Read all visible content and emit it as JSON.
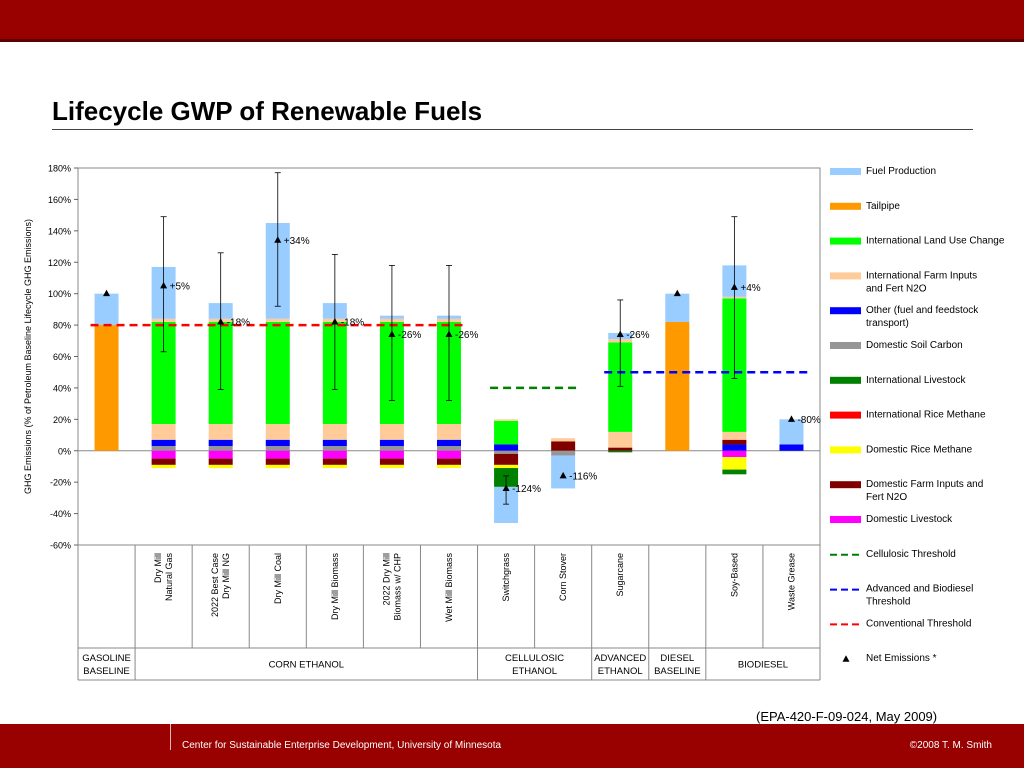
{
  "slide": {
    "title": "Lifecycle GWP of Renewable Fuels",
    "citation": "(EPA-420-F-09-024, May 2009)",
    "footer_left": "Center for Sustainable Enterprise Development, University of Minnesota",
    "footer_right": "©2008 T. M. Smith"
  },
  "chart_data": {
    "type": "bar",
    "stacked": true,
    "ylabel": "GHG Emissions (% of Petroleum Baseline Lifecycle GHG Emissions)",
    "ylim": [
      -60,
      180
    ],
    "yticks": [
      -60,
      -40,
      -20,
      0,
      20,
      40,
      60,
      80,
      100,
      120,
      140,
      160,
      180
    ],
    "ytick_labels": [
      "-60%",
      "-40%",
      "-20%",
      "0%",
      "20%",
      "40%",
      "60%",
      "80%",
      "100%",
      "120%",
      "140%",
      "160%",
      "180%"
    ],
    "grid": false,
    "legend_position": "right",
    "categories": [
      "",
      "Dry Mill Natural Gas",
      "2022 Best Case Dry Mill NG",
      "Dry Mill Coal",
      "Dry Mill Biomass",
      "2022 Dry Mill Biomass w/ CHP",
      "Wet Mill Biomass",
      "Switchgrass",
      "Corn Stover",
      "Sugarcane",
      "",
      "Soy-Based",
      "Waste Grease"
    ],
    "groups": [
      {
        "label": [
          "GASOLINE",
          "BASELINE"
        ],
        "span": [
          0,
          0
        ]
      },
      {
        "label": [
          "CORN ETHANOL"
        ],
        "span": [
          1,
          6
        ]
      },
      {
        "label": [
          "CELLULOSIC",
          "ETHANOL"
        ],
        "span": [
          7,
          8
        ]
      },
      {
        "label": [
          "ADVANCED",
          "ETHANOL"
        ],
        "span": [
          9,
          9
        ]
      },
      {
        "label": [
          "DIESEL",
          "BASELINE"
        ],
        "span": [
          10,
          10
        ]
      },
      {
        "label": [
          "BIODIESEL"
        ],
        "span": [
          11,
          12
        ]
      }
    ],
    "components": [
      {
        "key": "fuel_production",
        "name": "Fuel Production",
        "color": "#99CCFF"
      },
      {
        "key": "tailpipe",
        "name": "Tailpipe",
        "color": "#FF9900"
      },
      {
        "key": "intl_luc",
        "name": "International Land Use Change",
        "color": "#00FF00"
      },
      {
        "key": "intl_farm",
        "name": "International Farm Inputs and Fert N2O",
        "color": "#FFCC99"
      },
      {
        "key": "other_transport",
        "name": "Other (fuel and feedstock transport)",
        "color": "#0000FF"
      },
      {
        "key": "dom_soil",
        "name": "Domestic Soil Carbon",
        "color": "#969696"
      },
      {
        "key": "intl_livestock",
        "name": "International Livestock",
        "color": "#008000"
      },
      {
        "key": "intl_rice",
        "name": "International Rice Methane",
        "color": "#FF0000"
      },
      {
        "key": "dom_rice",
        "name": "Domestic Rice Methane",
        "color": "#FFFF00"
      },
      {
        "key": "dom_farm",
        "name": "Domestic Farm Inputs and Fert N2O",
        "color": "#800000"
      },
      {
        "key": "dom_livestock",
        "name": "Domestic Livestock",
        "color": "#FF00FF"
      }
    ],
    "stacks": [
      {
        "pos": [
          [
            "tailpipe",
            80
          ],
          [
            "fuel_production",
            20
          ]
        ],
        "neg": []
      },
      {
        "pos": [
          [
            "dom_soil",
            3
          ],
          [
            "other_transport",
            4
          ],
          [
            "intl_farm",
            10
          ],
          [
            "intl_luc",
            65
          ],
          [
            "intl_farm",
            2
          ],
          [
            "fuel_production",
            33
          ]
        ],
        "neg": [
          [
            "dom_livestock",
            5
          ],
          [
            "dom_farm",
            4
          ],
          [
            "dom_rice",
            2
          ]
        ]
      },
      {
        "pos": [
          [
            "dom_soil",
            3
          ],
          [
            "other_transport",
            4
          ],
          [
            "intl_farm",
            10
          ],
          [
            "intl_luc",
            65
          ],
          [
            "intl_farm",
            2
          ],
          [
            "fuel_production",
            10
          ]
        ],
        "neg": [
          [
            "dom_livestock",
            5
          ],
          [
            "dom_farm",
            4
          ],
          [
            "dom_rice",
            2
          ]
        ]
      },
      {
        "pos": [
          [
            "dom_soil",
            3
          ],
          [
            "other_transport",
            4
          ],
          [
            "intl_farm",
            10
          ],
          [
            "intl_luc",
            65
          ],
          [
            "intl_farm",
            2
          ],
          [
            "fuel_production",
            61
          ]
        ],
        "neg": [
          [
            "dom_livestock",
            5
          ],
          [
            "dom_farm",
            4
          ],
          [
            "dom_rice",
            2
          ]
        ]
      },
      {
        "pos": [
          [
            "dom_soil",
            3
          ],
          [
            "other_transport",
            4
          ],
          [
            "intl_farm",
            10
          ],
          [
            "intl_luc",
            65
          ],
          [
            "intl_farm",
            2
          ],
          [
            "fuel_production",
            10
          ]
        ],
        "neg": [
          [
            "dom_livestock",
            5
          ],
          [
            "dom_farm",
            4
          ],
          [
            "dom_rice",
            2
          ]
        ]
      },
      {
        "pos": [
          [
            "dom_soil",
            3
          ],
          [
            "other_transport",
            4
          ],
          [
            "intl_farm",
            10
          ],
          [
            "intl_luc",
            65
          ],
          [
            "intl_farm",
            2
          ],
          [
            "fuel_production",
            2
          ]
        ],
        "neg": [
          [
            "dom_livestock",
            5
          ],
          [
            "dom_farm",
            4
          ],
          [
            "dom_rice",
            2
          ]
        ]
      },
      {
        "pos": [
          [
            "dom_soil",
            3
          ],
          [
            "other_transport",
            4
          ],
          [
            "intl_farm",
            10
          ],
          [
            "intl_luc",
            65
          ],
          [
            "intl_farm",
            2
          ],
          [
            "fuel_production",
            2
          ]
        ],
        "neg": [
          [
            "dom_livestock",
            5
          ],
          [
            "dom_farm",
            4
          ],
          [
            "dom_rice",
            2
          ]
        ]
      },
      {
        "pos": [
          [
            "other_transport",
            4
          ],
          [
            "intl_luc",
            15
          ],
          [
            "intl_farm",
            1
          ]
        ],
        "neg": [
          [
            "dom_soil",
            2
          ],
          [
            "dom_farm",
            7
          ],
          [
            "dom_rice",
            2
          ],
          [
            "intl_livestock",
            12
          ],
          [
            "fuel_production",
            23
          ]
        ]
      },
      {
        "pos": [
          [
            "dom_farm",
            6
          ],
          [
            "intl_farm",
            2
          ]
        ],
        "neg": [
          [
            "dom_soil",
            3
          ],
          [
            "fuel_production",
            21
          ]
        ]
      },
      {
        "pos": [
          [
            "dom_farm",
            2
          ],
          [
            "intl_farm",
            10
          ],
          [
            "intl_luc",
            57
          ],
          [
            "intl_farm",
            2
          ],
          [
            "fuel_production",
            4
          ]
        ],
        "neg": [
          [
            "intl_livestock",
            1
          ]
        ]
      },
      {
        "pos": [
          [
            "tailpipe",
            82
          ],
          [
            "fuel_production",
            18
          ]
        ],
        "neg": []
      },
      {
        "pos": [
          [
            "other_transport",
            4
          ],
          [
            "dom_farm",
            3
          ],
          [
            "intl_farm",
            5
          ],
          [
            "intl_luc",
            85
          ],
          [
            "intl_farm",
            1
          ],
          [
            "fuel_production",
            20
          ]
        ],
        "neg": [
          [
            "dom_livestock",
            4
          ],
          [
            "dom_rice",
            8
          ],
          [
            "intl_livestock",
            3
          ]
        ]
      },
      {
        "pos": [
          [
            "other_transport",
            4
          ],
          [
            "fuel_production",
            16
          ]
        ],
        "neg": []
      }
    ],
    "net_emissions": [
      100,
      105,
      82,
      134,
      82,
      74,
      74,
      -24,
      -16,
      74,
      100,
      104,
      20
    ],
    "net_labels": [
      "",
      "+5%",
      "-18%",
      "+34%",
      "-18%",
      "-26%",
      "-26%",
      "-124%",
      "-116%",
      "-26%",
      "",
      "+4%",
      "-80%"
    ],
    "error_bars": [
      null,
      [
        63,
        149
      ],
      [
        39,
        126
      ],
      [
        92,
        177
      ],
      [
        39,
        125
      ],
      [
        32,
        118
      ],
      [
        32,
        118
      ],
      [
        -34,
        -16
      ],
      null,
      [
        41,
        96
      ],
      null,
      [
        46,
        149
      ],
      null
    ],
    "thresholds": [
      {
        "name": "Conventional Threshold",
        "value": 80,
        "color": "#FF0000",
        "from": 0,
        "to": 6
      },
      {
        "name": "Cellulosic Threshold",
        "value": 40,
        "color": "#008000",
        "from": 7,
        "to": 8
      },
      {
        "name": "Advanced and Biodiesel Threshold",
        "value": 50,
        "color": "#0000FF",
        "from": 9,
        "to": 12
      }
    ],
    "net_marker_label": "Net Emissions *"
  }
}
